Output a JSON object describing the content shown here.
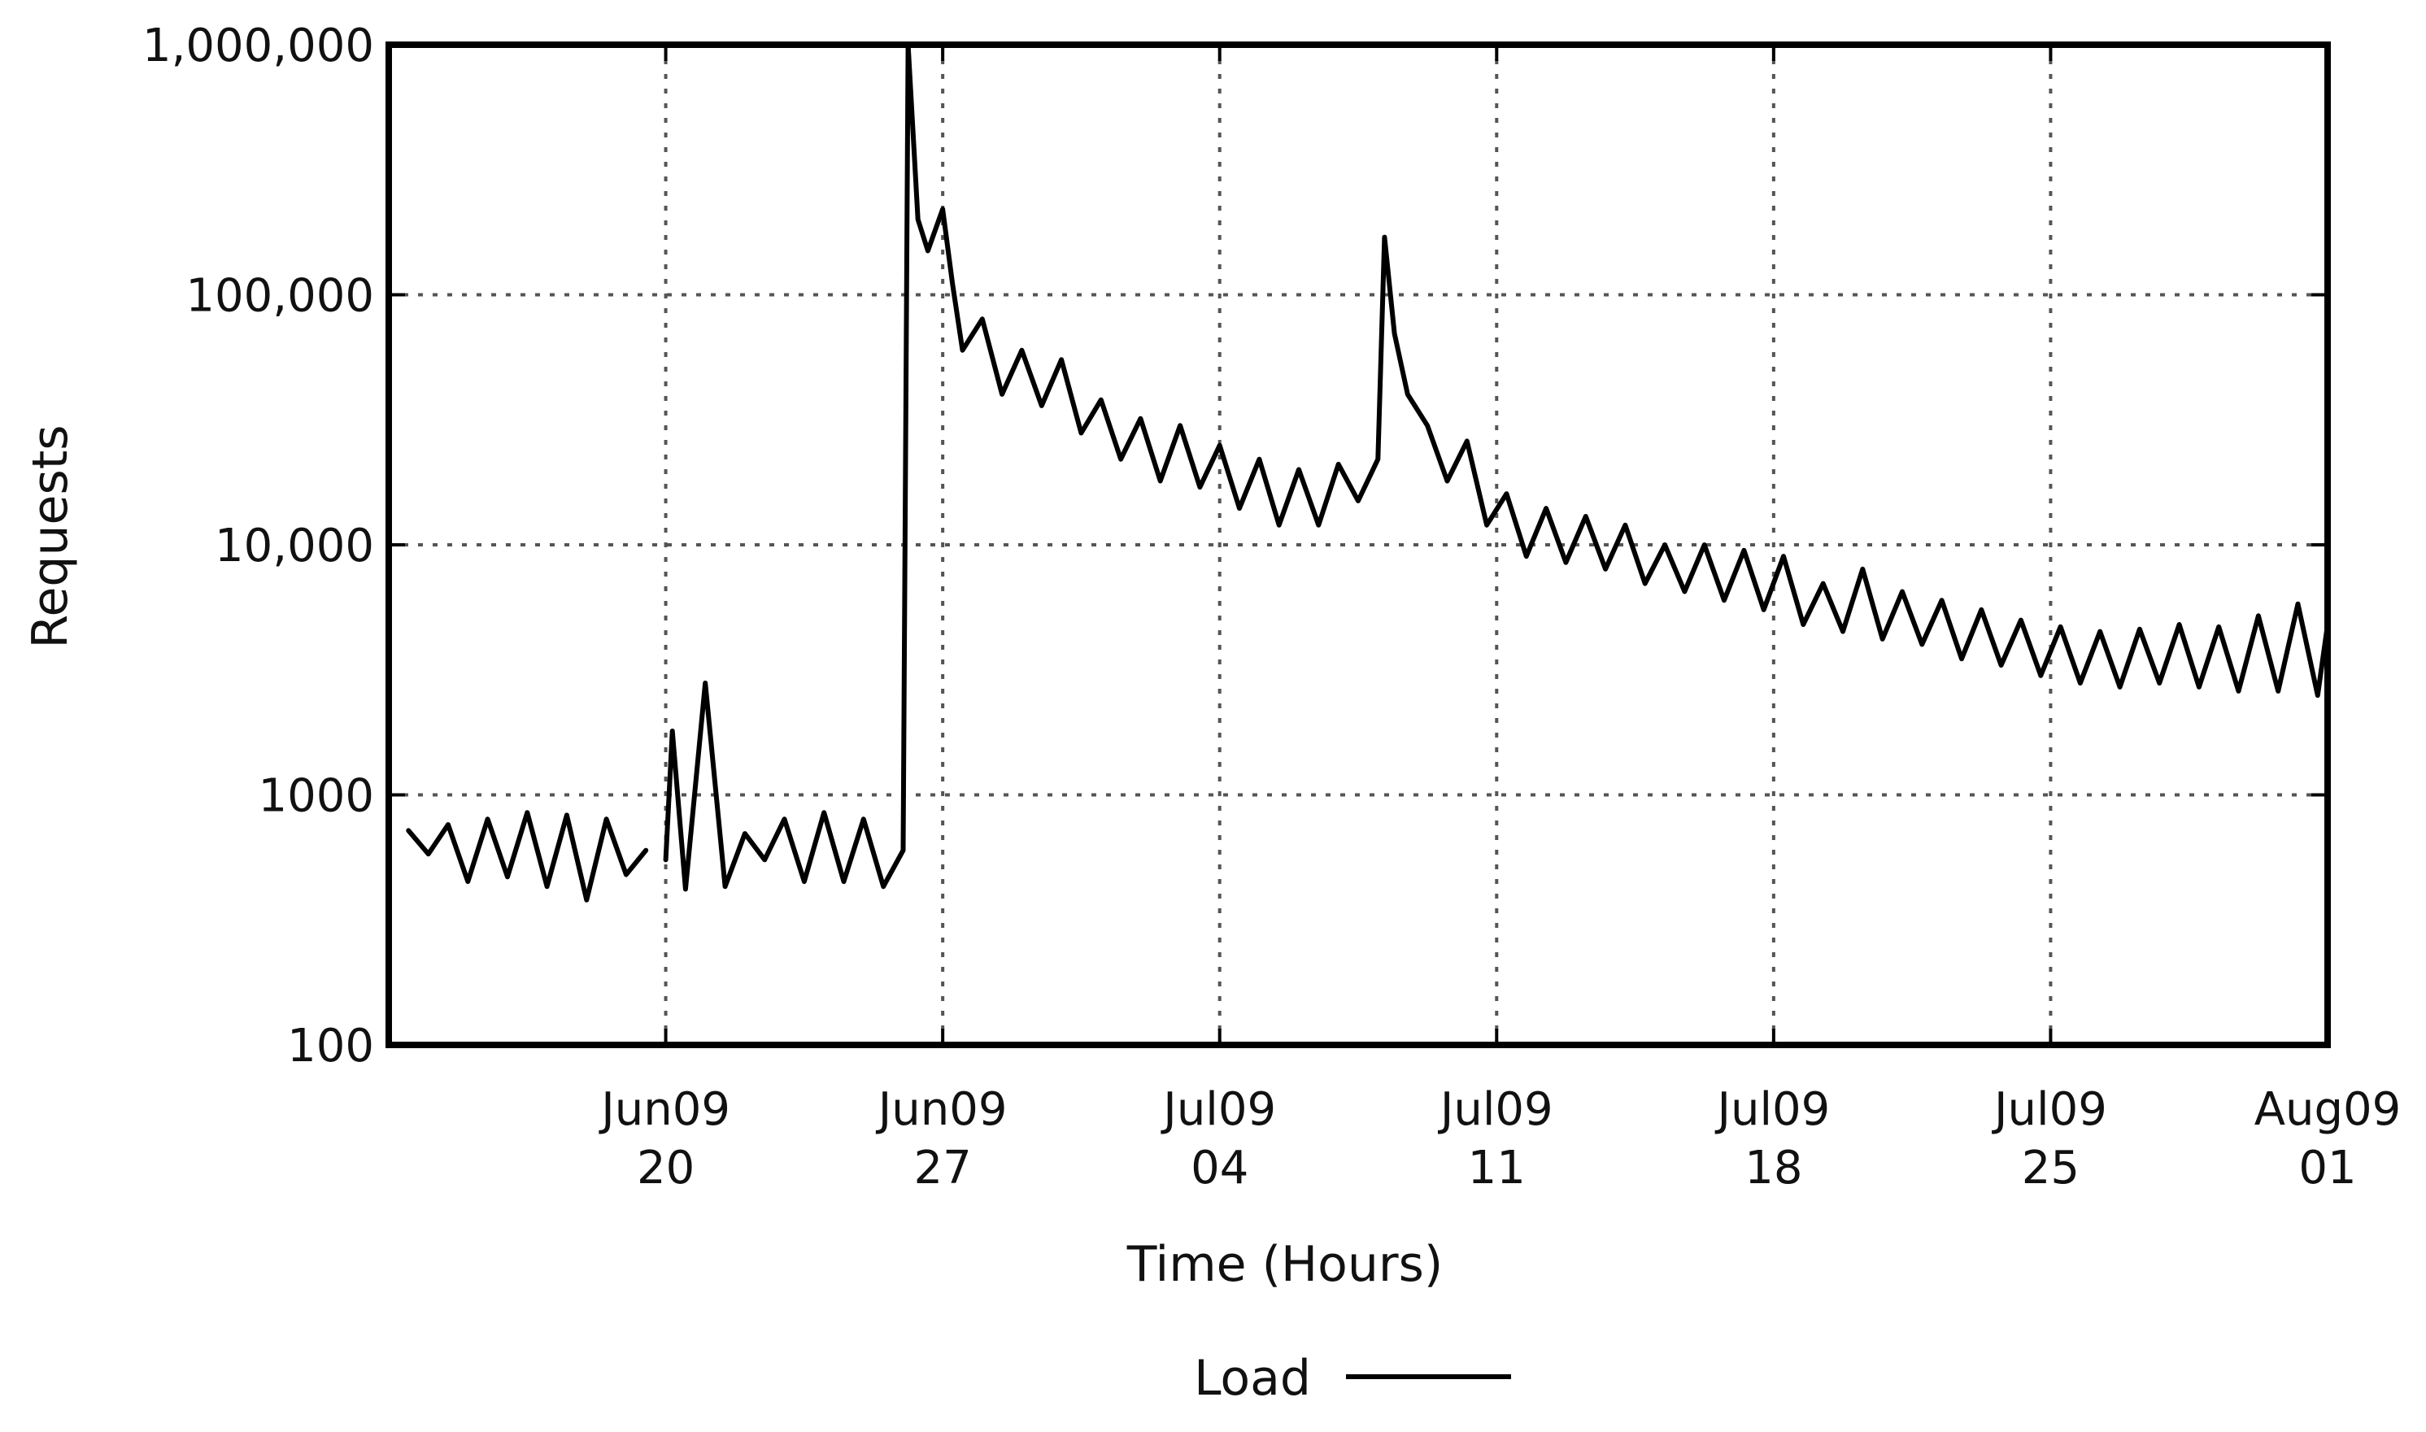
{
  "chart_data": {
    "type": "line",
    "xlabel": "Time (Hours)",
    "ylabel": "Requests",
    "yscale": "log",
    "ylim": [
      100,
      1000000
    ],
    "xlim": [
      "2009-06-13",
      "2009-08-01"
    ],
    "grid": true,
    "legend": {
      "position": "bottom-center",
      "entries": [
        "Load"
      ]
    },
    "y_ticks": [
      {
        "value": 100,
        "label": "100"
      },
      {
        "value": 1000,
        "label": "1000"
      },
      {
        "value": 10000,
        "label": "10,000"
      },
      {
        "value": 100000,
        "label": "100,000"
      },
      {
        "value": 1000000,
        "label": "1,000,000"
      }
    ],
    "x_ticks": [
      {
        "value": "2009-06-20",
        "line1": "Jun09",
        "line2": "20"
      },
      {
        "value": "2009-06-27",
        "line1": "Jun09",
        "line2": "27"
      },
      {
        "value": "2009-07-04",
        "line1": "Jul09",
        "line2": "04"
      },
      {
        "value": "2009-07-11",
        "line1": "Jul09",
        "line2": "11"
      },
      {
        "value": "2009-07-18",
        "line1": "Jul09",
        "line2": "18"
      },
      {
        "value": "2009-07-25",
        "line1": "Jul09",
        "line2": "25"
      },
      {
        "value": "2009-08-01",
        "line1": "Aug09",
        "line2": "01"
      }
    ],
    "series": [
      {
        "name": "Load",
        "color": "#000000",
        "segments": [
          [
            [
              "2009-06-13T12:00",
              720
            ],
            [
              "2009-06-14T00:00",
              580
            ],
            [
              "2009-06-14T12:00",
              760
            ],
            [
              "2009-06-15T00:00",
              450
            ],
            [
              "2009-06-15T12:00",
              800
            ],
            [
              "2009-06-16T00:00",
              470
            ],
            [
              "2009-06-16T12:00",
              850
            ],
            [
              "2009-06-17T00:00",
              430
            ],
            [
              "2009-06-17T12:00",
              830
            ],
            [
              "2009-06-18T00:00",
              380
            ],
            [
              "2009-06-18T12:00",
              800
            ],
            [
              "2009-06-19T00:00",
              480
            ],
            [
              "2009-06-19T12:00",
              600
            ]
          ],
          [
            [
              "2009-06-20T00:00",
              550
            ],
            [
              "2009-06-20T04:00",
              1800
            ],
            [
              "2009-06-20T12:00",
              420
            ],
            [
              "2009-06-21T00:00",
              2800
            ],
            [
              "2009-06-21T12:00",
              430
            ],
            [
              "2009-06-22T00:00",
              700
            ],
            [
              "2009-06-22T12:00",
              550
            ],
            [
              "2009-06-23T00:00",
              800
            ],
            [
              "2009-06-23T12:00",
              450
            ],
            [
              "2009-06-24T00:00",
              850
            ],
            [
              "2009-06-24T12:00",
              450
            ],
            [
              "2009-06-25T00:00",
              800
            ],
            [
              "2009-06-25T12:00",
              430
            ],
            [
              "2009-06-26T00:00",
              600
            ],
            [
              "2009-06-26T03:00",
              1000000
            ]
          ],
          [
            [
              "2009-06-26T03:00",
              1000000
            ],
            [
              "2009-06-26T09:00",
              200000
            ],
            [
              "2009-06-26T15:00",
              150000
            ],
            [
              "2009-06-27T00:00",
              220000
            ],
            [
              "2009-06-27T06:00",
              110000
            ],
            [
              "2009-06-27T12:00",
              60000
            ],
            [
              "2009-06-28T00:00",
              80000
            ],
            [
              "2009-06-28T12:00",
              40000
            ],
            [
              "2009-06-29T00:00",
              60000
            ],
            [
              "2009-06-29T12:00",
              36000
            ],
            [
              "2009-06-30T00:00",
              55000
            ],
            [
              "2009-06-30T12:00",
              28000
            ],
            [
              "2009-07-01T00:00",
              38000
            ],
            [
              "2009-07-01T12:00",
              22000
            ],
            [
              "2009-07-02T00:00",
              32000
            ],
            [
              "2009-07-02T12:00",
              18000
            ],
            [
              "2009-07-03T00:00",
              30000
            ],
            [
              "2009-07-03T12:00",
              17000
            ],
            [
              "2009-07-04T00:00",
              25000
            ],
            [
              "2009-07-04T12:00",
              14000
            ],
            [
              "2009-07-05T00:00",
              22000
            ],
            [
              "2009-07-05T12:00",
              12000
            ],
            [
              "2009-07-06T00:00",
              20000
            ],
            [
              "2009-07-06T12:00",
              12000
            ],
            [
              "2009-07-07T00:00",
              21000
            ],
            [
              "2009-07-07T12:00",
              15000
            ],
            [
              "2009-07-08T00:00",
              22000
            ],
            [
              "2009-07-08T04:00",
              170000
            ],
            [
              "2009-07-08T10:00",
              70000
            ],
            [
              "2009-07-08T18:00",
              40000
            ],
            [
              "2009-07-09T06:00",
              30000
            ],
            [
              "2009-07-09T18:00",
              18000
            ],
            [
              "2009-07-10T06:00",
              26000
            ],
            [
              "2009-07-10T18:00",
              12000
            ],
            [
              "2009-07-11T06:00",
              16000
            ],
            [
              "2009-07-11T18:00",
              9000
            ],
            [
              "2009-07-12T06:00",
              14000
            ],
            [
              "2009-07-12T18:00",
              8500
            ],
            [
              "2009-07-13T06:00",
              13000
            ],
            [
              "2009-07-13T18:00",
              8000
            ],
            [
              "2009-07-14T06:00",
              12000
            ],
            [
              "2009-07-14T18:00",
              7000
            ],
            [
              "2009-07-15T06:00",
              10000
            ],
            [
              "2009-07-15T18:00",
              6500
            ],
            [
              "2009-07-16T06:00",
              10000
            ],
            [
              "2009-07-16T18:00",
              6000
            ],
            [
              "2009-07-17T06:00",
              9500
            ],
            [
              "2009-07-17T18:00",
              5500
            ],
            [
              "2009-07-18T06:00",
              9000
            ],
            [
              "2009-07-18T18:00",
              4800
            ],
            [
              "2009-07-19T06:00",
              7000
            ],
            [
              "2009-07-19T18:00",
              4500
            ],
            [
              "2009-07-20T06:00",
              8000
            ],
            [
              "2009-07-20T18:00",
              4200
            ],
            [
              "2009-07-21T06:00",
              6500
            ],
            [
              "2009-07-21T18:00",
              4000
            ],
            [
              "2009-07-22T06:00",
              6000
            ],
            [
              "2009-07-22T18:00",
              3500
            ],
            [
              "2009-07-23T06:00",
              5500
            ],
            [
              "2009-07-23T18:00",
              3300
            ],
            [
              "2009-07-24T06:00",
              5000
            ],
            [
              "2009-07-24T18:00",
              3000
            ],
            [
              "2009-07-25T06:00",
              4700
            ],
            [
              "2009-07-25T18:00",
              2800
            ],
            [
              "2009-07-26T06:00",
              4500
            ],
            [
              "2009-07-26T18:00",
              2700
            ],
            [
              "2009-07-27T06:00",
              4600
            ],
            [
              "2009-07-27T18:00",
              2800
            ],
            [
              "2009-07-28T06:00",
              4800
            ],
            [
              "2009-07-28T18:00",
              2700
            ],
            [
              "2009-07-29T06:00",
              4700
            ],
            [
              "2009-07-29T18:00",
              2600
            ],
            [
              "2009-07-30T06:00",
              5200
            ],
            [
              "2009-07-30T18:00",
              2600
            ],
            [
              "2009-07-31T06:00",
              5800
            ],
            [
              "2009-07-31T18:00",
              2500
            ],
            [
              "2009-08-01T00:00",
              4800
            ]
          ]
        ]
      }
    ]
  }
}
